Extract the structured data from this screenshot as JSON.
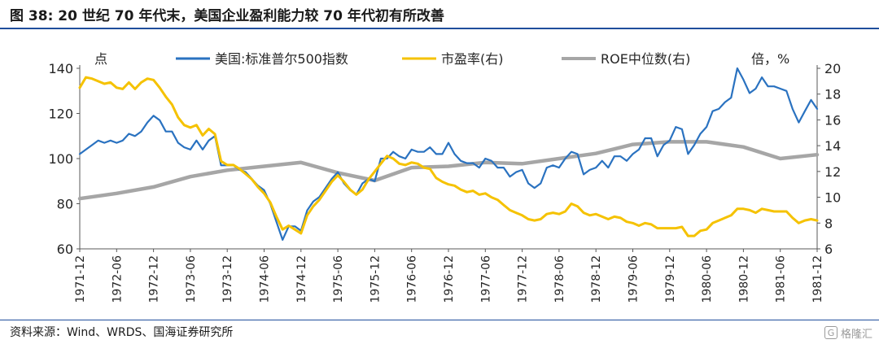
{
  "title": "图 38:  20 世纪 70 年代末，美国企业盈利能力较 70 年代初有所改善",
  "source": "资料来源：Wind、WRDS、国海证券研究所",
  "watermark": "格隆汇",
  "watermark_icon": "G",
  "colors": {
    "rule": "#1f4e9c",
    "sp500": "#2a72c0",
    "pe": "#f5c200",
    "roe": "#a6a6a6",
    "axis": "#595959"
  },
  "chart_data": {
    "type": "line",
    "left_axis": {
      "unit_label": "点",
      "ylim": [
        60,
        140
      ],
      "ticks": [
        60,
        80,
        100,
        120,
        140
      ]
    },
    "right_axis": {
      "unit_label": "倍，%",
      "ylim": [
        6,
        20
      ],
      "ticks": [
        6,
        8,
        10,
        12,
        14,
        16,
        18,
        20
      ]
    },
    "x_ticks": [
      "1971-12",
      "1972-06",
      "1972-12",
      "1973-06",
      "1973-12",
      "1974-06",
      "1974-12",
      "1975-06",
      "1975-12",
      "1976-06",
      "1976-12",
      "1977-06",
      "1977-12",
      "1978-06",
      "1978-12",
      "1979-06",
      "1979-12",
      "1980-06",
      "1980-12",
      "1981-06",
      "1981-12"
    ],
    "legend_position": "top",
    "grid": false,
    "series": [
      {
        "name": "美国:标准普尔500指数",
        "axis": "left",
        "color": "#2a72c0",
        "points": [
          [
            "1971-12",
            102
          ],
          [
            "1972-01",
            104
          ],
          [
            "1972-02",
            106
          ],
          [
            "1972-03",
            108
          ],
          [
            "1972-04",
            107
          ],
          [
            "1972-05",
            108
          ],
          [
            "1972-06",
            107
          ],
          [
            "1972-07",
            108
          ],
          [
            "1972-08",
            111
          ],
          [
            "1972-09",
            110
          ],
          [
            "1972-10",
            112
          ],
          [
            "1972-11",
            116
          ],
          [
            "1972-12",
            119
          ],
          [
            "1973-01",
            117
          ],
          [
            "1973-02",
            112
          ],
          [
            "1973-03",
            112
          ],
          [
            "1973-04",
            107
          ],
          [
            "1973-05",
            105
          ],
          [
            "1973-06",
            104
          ],
          [
            "1973-07",
            108
          ],
          [
            "1973-08",
            104
          ],
          [
            "1973-09",
            108
          ],
          [
            "1973-10",
            110
          ],
          [
            "1973-11",
            97
          ],
          [
            "1973-12",
            97
          ],
          [
            "1974-01",
            97
          ],
          [
            "1974-02",
            95
          ],
          [
            "1974-03",
            94
          ],
          [
            "1974-04",
            91
          ],
          [
            "1974-05",
            88
          ],
          [
            "1974-06",
            86
          ],
          [
            "1974-07",
            80
          ],
          [
            "1974-08",
            72
          ],
          [
            "1974-09",
            64
          ],
          [
            "1974-10",
            70
          ],
          [
            "1974-11",
            70
          ],
          [
            "1974-12",
            68
          ],
          [
            "1975-01",
            77
          ],
          [
            "1975-02",
            81
          ],
          [
            "1975-03",
            83
          ],
          [
            "1975-04",
            87
          ],
          [
            "1975-05",
            91
          ],
          [
            "1975-06",
            94
          ],
          [
            "1975-07",
            89
          ],
          [
            "1975-08",
            86
          ],
          [
            "1975-09",
            84
          ],
          [
            "1975-10",
            89
          ],
          [
            "1975-11",
            91
          ],
          [
            "1975-12",
            90
          ],
          [
            "1976-01",
            100
          ],
          [
            "1976-02",
            100
          ],
          [
            "1976-03",
            103
          ],
          [
            "1976-04",
            101
          ],
          [
            "1976-05",
            100
          ],
          [
            "1976-06",
            104
          ],
          [
            "1976-07",
            103
          ],
          [
            "1976-08",
            103
          ],
          [
            "1976-09",
            105
          ],
          [
            "1976-10",
            102
          ],
          [
            "1976-11",
            102
          ],
          [
            "1976-12",
            107
          ],
          [
            "1977-01",
            102
          ],
          [
            "1977-02",
            99
          ],
          [
            "1977-03",
            98
          ],
          [
            "1977-04",
            98
          ],
          [
            "1977-05",
            96
          ],
          [
            "1977-06",
            100
          ],
          [
            "1977-07",
            99
          ],
          [
            "1977-08",
            96
          ],
          [
            "1977-09",
            96
          ],
          [
            "1977-10",
            92
          ],
          [
            "1977-11",
            94
          ],
          [
            "1977-12",
            95
          ],
          [
            "1978-01",
            89
          ],
          [
            "1978-02",
            87
          ],
          [
            "1978-03",
            89
          ],
          [
            "1978-04",
            96
          ],
          [
            "1978-05",
            97
          ],
          [
            "1978-06",
            96
          ],
          [
            "1978-07",
            100
          ],
          [
            "1978-08",
            103
          ],
          [
            "1978-09",
            102
          ],
          [
            "1978-10",
            93
          ],
          [
            "1978-11",
            95
          ],
          [
            "1978-12",
            96
          ],
          [
            "1979-01",
            99
          ],
          [
            "1979-02",
            96
          ],
          [
            "1979-03",
            101
          ],
          [
            "1979-04",
            101
          ],
          [
            "1979-05",
            99
          ],
          [
            "1979-06",
            102
          ],
          [
            "1979-07",
            104
          ],
          [
            "1979-08",
            109
          ],
          [
            "1979-09",
            109
          ],
          [
            "1979-10",
            101
          ],
          [
            "1979-11",
            106
          ],
          [
            "1979-12",
            108
          ],
          [
            "1980-01",
            114
          ],
          [
            "1980-02",
            113
          ],
          [
            "1980-03",
            102
          ],
          [
            "1980-04",
            106
          ],
          [
            "1980-05",
            111
          ],
          [
            "1980-06",
            114
          ],
          [
            "1980-07",
            121
          ],
          [
            "1980-08",
            122
          ],
          [
            "1980-09",
            125
          ],
          [
            "1980-10",
            127
          ],
          [
            "1980-11",
            140
          ],
          [
            "1980-12",
            135
          ],
          [
            "1981-01",
            129
          ],
          [
            "1981-02",
            131
          ],
          [
            "1981-03",
            136
          ],
          [
            "1981-04",
            132
          ],
          [
            "1981-05",
            132
          ],
          [
            "1981-06",
            131
          ],
          [
            "1981-07",
            130
          ],
          [
            "1981-08",
            122
          ],
          [
            "1981-09",
            116
          ],
          [
            "1981-10",
            121
          ],
          [
            "1981-11",
            126
          ],
          [
            "1981-12",
            122
          ]
        ]
      },
      {
        "name": "市盈率(右)",
        "axis": "right",
        "color": "#f5c200",
        "points": [
          [
            "1971-12",
            18.5
          ],
          [
            "1972-01",
            19.3
          ],
          [
            "1972-02",
            19.2
          ],
          [
            "1972-03",
            19.0
          ],
          [
            "1972-04",
            18.8
          ],
          [
            "1972-05",
            18.9
          ],
          [
            "1972-06",
            18.5
          ],
          [
            "1972-07",
            18.4
          ],
          [
            "1972-08",
            18.9
          ],
          [
            "1972-09",
            18.4
          ],
          [
            "1972-10",
            18.9
          ],
          [
            "1972-11",
            19.2
          ],
          [
            "1972-12",
            19.1
          ],
          [
            "1973-01",
            18.5
          ],
          [
            "1973-02",
            17.8
          ],
          [
            "1973-03",
            17.2
          ],
          [
            "1973-04",
            16.2
          ],
          [
            "1973-05",
            15.6
          ],
          [
            "1973-06",
            15.4
          ],
          [
            "1973-07",
            15.6
          ],
          [
            "1973-08",
            14.8
          ],
          [
            "1973-09",
            15.3
          ],
          [
            "1973-10",
            14.9
          ],
          [
            "1973-11",
            12.8
          ],
          [
            "1973-12",
            12.5
          ],
          [
            "1974-01",
            12.5
          ],
          [
            "1974-02",
            12.2
          ],
          [
            "1974-03",
            11.8
          ],
          [
            "1974-04",
            11.4
          ],
          [
            "1974-05",
            10.8
          ],
          [
            "1974-06",
            10.3
          ],
          [
            "1974-07",
            9.6
          ],
          [
            "1974-08",
            8.5
          ],
          [
            "1974-09",
            7.5
          ],
          [
            "1974-10",
            7.8
          ],
          [
            "1974-11",
            7.5
          ],
          [
            "1974-12",
            7.2
          ],
          [
            "1975-01",
            8.6
          ],
          [
            "1975-02",
            9.3
          ],
          [
            "1975-03",
            9.8
          ],
          [
            "1975-04",
            10.5
          ],
          [
            "1975-05",
            11.2
          ],
          [
            "1975-06",
            11.7
          ],
          [
            "1975-07",
            11.2
          ],
          [
            "1975-08",
            10.6
          ],
          [
            "1975-09",
            10.2
          ],
          [
            "1975-10",
            10.6
          ],
          [
            "1975-11",
            11.4
          ],
          [
            "1975-12",
            12.0
          ],
          [
            "1976-01",
            12.6
          ],
          [
            "1976-02",
            13.2
          ],
          [
            "1976-03",
            13.0
          ],
          [
            "1976-04",
            12.6
          ],
          [
            "1976-05",
            12.5
          ],
          [
            "1976-06",
            12.7
          ],
          [
            "1976-07",
            12.6
          ],
          [
            "1976-08",
            12.3
          ],
          [
            "1976-09",
            12.2
          ],
          [
            "1976-10",
            11.5
          ],
          [
            "1976-11",
            11.2
          ],
          [
            "1976-12",
            11.0
          ],
          [
            "1977-01",
            10.9
          ],
          [
            "1977-02",
            10.6
          ],
          [
            "1977-03",
            10.4
          ],
          [
            "1977-04",
            10.5
          ],
          [
            "1977-05",
            10.2
          ],
          [
            "1977-06",
            10.3
          ],
          [
            "1977-07",
            10.0
          ],
          [
            "1977-08",
            9.8
          ],
          [
            "1977-09",
            9.4
          ],
          [
            "1977-10",
            9.0
          ],
          [
            "1977-11",
            8.8
          ],
          [
            "1977-12",
            8.6
          ],
          [
            "1978-01",
            8.3
          ],
          [
            "1978-02",
            8.2
          ],
          [
            "1978-03",
            8.3
          ],
          [
            "1978-04",
            8.7
          ],
          [
            "1978-05",
            8.8
          ],
          [
            "1978-06",
            8.7
          ],
          [
            "1978-07",
            8.9
          ],
          [
            "1978-08",
            9.5
          ],
          [
            "1978-09",
            9.3
          ],
          [
            "1978-10",
            8.8
          ],
          [
            "1978-11",
            8.6
          ],
          [
            "1978-12",
            8.7
          ],
          [
            "1979-01",
            8.5
          ],
          [
            "1979-02",
            8.3
          ],
          [
            "1979-03",
            8.5
          ],
          [
            "1979-04",
            8.4
          ],
          [
            "1979-05",
            8.1
          ],
          [
            "1979-06",
            8.0
          ],
          [
            "1979-07",
            7.8
          ],
          [
            "1979-08",
            8.0
          ],
          [
            "1979-09",
            7.9
          ],
          [
            "1979-10",
            7.6
          ],
          [
            "1979-11",
            7.6
          ],
          [
            "1979-12",
            7.6
          ],
          [
            "1980-01",
            7.6
          ],
          [
            "1980-02",
            7.7
          ],
          [
            "1980-03",
            7.0
          ],
          [
            "1980-04",
            7.0
          ],
          [
            "1980-05",
            7.4
          ],
          [
            "1980-06",
            7.5
          ],
          [
            "1980-07",
            8.0
          ],
          [
            "1980-08",
            8.2
          ],
          [
            "1980-09",
            8.4
          ],
          [
            "1980-10",
            8.6
          ],
          [
            "1980-11",
            9.1
          ],
          [
            "1980-12",
            9.1
          ],
          [
            "1981-01",
            9.0
          ],
          [
            "1981-02",
            8.8
          ],
          [
            "1981-03",
            9.1
          ],
          [
            "1981-04",
            9.0
          ],
          [
            "1981-05",
            8.9
          ],
          [
            "1981-06",
            8.9
          ],
          [
            "1981-07",
            8.9
          ],
          [
            "1981-08",
            8.4
          ],
          [
            "1981-09",
            8.0
          ],
          [
            "1981-10",
            8.2
          ],
          [
            "1981-11",
            8.3
          ],
          [
            "1981-12",
            8.2
          ]
        ]
      },
      {
        "name": "ROE中位数(右)",
        "axis": "right",
        "color": "#a6a6a6",
        "points": [
          [
            "1971-12",
            9.9
          ],
          [
            "1972-06",
            10.3
          ],
          [
            "1972-12",
            10.8
          ],
          [
            "1973-06",
            11.6
          ],
          [
            "1973-12",
            12.1
          ],
          [
            "1974-06",
            12.4
          ],
          [
            "1974-12",
            12.7
          ],
          [
            "1975-06",
            11.9
          ],
          [
            "1975-12",
            11.3
          ],
          [
            "1976-06",
            12.3
          ],
          [
            "1976-12",
            12.4
          ],
          [
            "1977-06",
            12.7
          ],
          [
            "1977-12",
            12.6
          ],
          [
            "1978-06",
            13.0
          ],
          [
            "1978-12",
            13.4
          ],
          [
            "1979-06",
            14.1
          ],
          [
            "1979-12",
            14.3
          ],
          [
            "1980-06",
            14.3
          ],
          [
            "1980-12",
            13.9
          ],
          [
            "1981-06",
            13.0
          ],
          [
            "1981-12",
            13.3
          ]
        ]
      }
    ]
  }
}
